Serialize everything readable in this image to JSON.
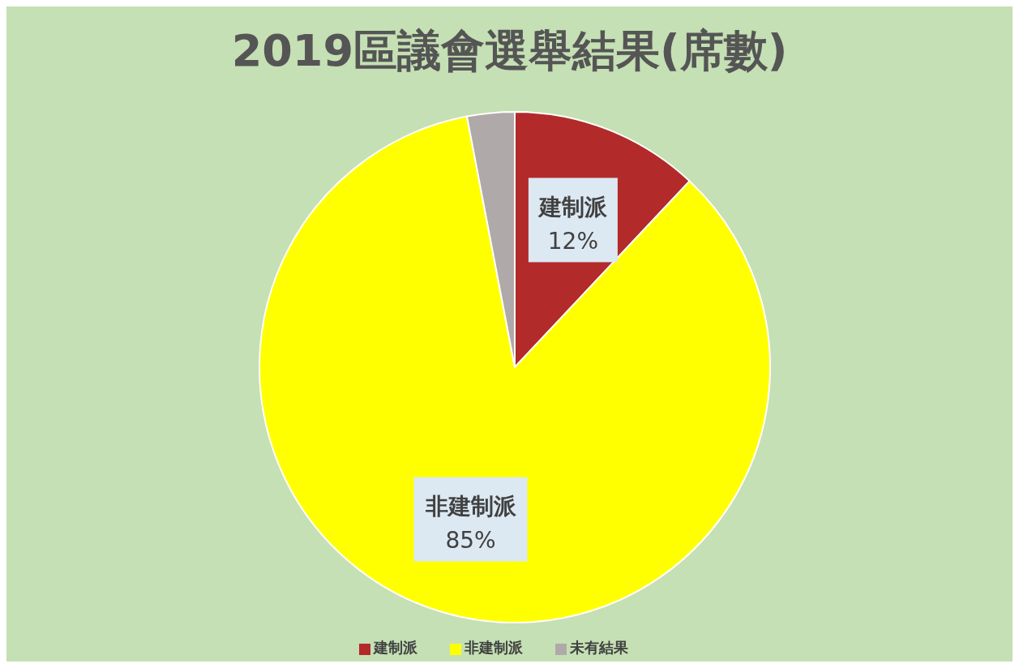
{
  "chart_data": {
    "type": "pie",
    "title": "2019區議會選舉結果(席數)",
    "categories": [
      "建制派",
      "非建制派",
      "未有結果"
    ],
    "values": [
      12,
      85,
      3
    ],
    "colors": [
      "#b22a2a",
      "#ffff00",
      "#b0a9a9"
    ],
    "value_labels": [
      "12%",
      "85%",
      null
    ],
    "legend": "bottom"
  }
}
